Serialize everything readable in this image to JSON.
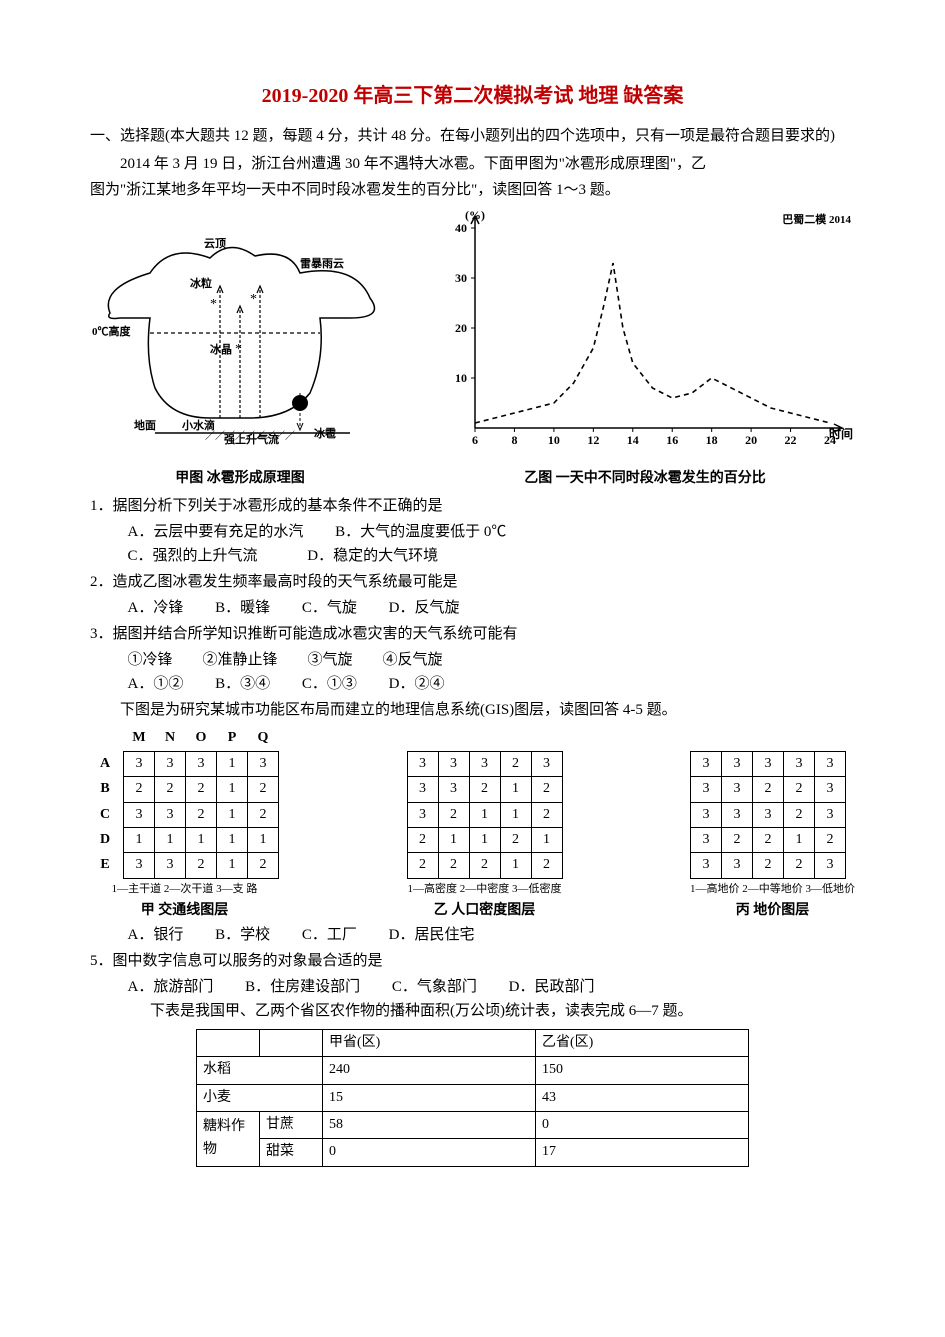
{
  "title": "2019-2020 年高三下第二次模拟考试 地理 缺答案",
  "section1_head": "一、选择题(本大题共 12 题，每题 4 分，共计 48 分。在每小题列出的四个选项中，只有一项是最符合题目要求的)",
  "intro1_line1": "2014 年 3 月 19 日，浙江台州遭遇 30 年不遇特大冰雹。下面甲图为\"冰雹形成原理图\"，乙",
  "intro1_line2": "图为\"浙江某地多年平均一天中不同时段冰雹发生的百分比\"，读图回答 1～3 题。",
  "fig_left": {
    "caption": "甲图   冰雹形成原理图",
    "labels": {
      "cloud_top": "云顶",
      "thunder_cloud": "雷暴雨云",
      "ice": "冰粒",
      "zero_line": "0℃高度",
      "ice_crystal": "冰晶",
      "ground_left": "地面",
      "droplet": "小水滴",
      "updraft": "强上升气流",
      "hail": "冰雹"
    }
  },
  "fig_right": {
    "caption": "乙图   一天中不同时段冰雹发生的百分比",
    "y_label": "(%)",
    "x_label": "时间",
    "watermark": "巴蜀二模 2014",
    "y_ticks": [
      "40",
      "30",
      "20",
      "10"
    ],
    "x_ticks": [
      "6",
      "8",
      "10",
      "12",
      "14",
      "16",
      "18",
      "20",
      "22",
      "24"
    ],
    "points": [
      [
        6,
        1
      ],
      [
        7,
        2
      ],
      [
        8,
        3
      ],
      [
        9,
        4
      ],
      [
        10,
        5
      ],
      [
        11,
        9
      ],
      [
        12,
        16
      ],
      [
        12.5,
        24
      ],
      [
        13,
        33
      ],
      [
        13.5,
        20
      ],
      [
        14,
        13
      ],
      [
        15,
        8
      ],
      [
        16,
        6
      ],
      [
        17,
        7
      ],
      [
        18,
        10
      ],
      [
        19,
        8
      ],
      [
        20,
        6
      ],
      [
        21,
        4
      ],
      [
        22,
        3
      ],
      [
        23,
        2
      ],
      [
        24,
        1
      ]
    ],
    "line_color": "#000000",
    "background_color": "#ffffff"
  },
  "q1": {
    "stem": "1．据图分析下列关于冰雹形成的基本条件不正确的是",
    "A": "A．云层中要有充足的水汽",
    "B": "B．大气的温度要低于 0℃",
    "C": "C．强烈的上升气流",
    "D": "D．稳定的大气环境"
  },
  "q2": {
    "stem": "2．造成乙图冰雹发生频率最高时段的天气系统最可能是",
    "A": "A．冷锋",
    "B": "B．暖锋",
    "C": "C．气旋",
    "D": "D．反气旋"
  },
  "q3": {
    "stem": "3．据图并结合所学知识推断可能造成冰雹灾害的天气系统可能有",
    "line2": "①冷锋        ②准静止锋        ③气旋        ④反气旋",
    "A": "A．①②",
    "B": "B．③④",
    "C": "C．①③",
    "D": "D．②④"
  },
  "gis_intro": "下图是为研究某城市功能区布局而建立的地理信息系统(GIS)图层，读图回答 4-5 题。",
  "gis_cols": [
    "M",
    "N",
    "O",
    "P",
    "Q"
  ],
  "gis_rows": [
    "A",
    "B",
    "C",
    "D",
    "E"
  ],
  "gis_jia": {
    "title": "甲  交通线图层",
    "legend": "1—主干道  2—次干道  3—支  路",
    "cells": [
      [
        3,
        3,
        3,
        1,
        3
      ],
      [
        2,
        2,
        2,
        1,
        2
      ],
      [
        3,
        3,
        2,
        1,
        2
      ],
      [
        1,
        1,
        1,
        1,
        1
      ],
      [
        3,
        3,
        2,
        1,
        2
      ]
    ]
  },
  "gis_yi": {
    "title": "乙  人口密度图层",
    "legend": "1—高密度  2—中密度  3—低密度",
    "cells": [
      [
        3,
        3,
        3,
        2,
        3
      ],
      [
        3,
        3,
        2,
        1,
        2
      ],
      [
        3,
        2,
        1,
        1,
        2
      ],
      [
        2,
        1,
        1,
        2,
        1
      ],
      [
        2,
        2,
        2,
        1,
        2
      ]
    ]
  },
  "gis_bing": {
    "title": "丙  地价图层",
    "legend": "1—高地价  2—中等地价  3—低地价",
    "cells": [
      [
        3,
        3,
        3,
        3,
        3
      ],
      [
        3,
        3,
        2,
        2,
        3
      ],
      [
        3,
        3,
        3,
        2,
        3
      ],
      [
        3,
        2,
        2,
        1,
        2
      ],
      [
        3,
        3,
        2,
        2,
        3
      ]
    ]
  },
  "q4_opts": {
    "A": "A．银行",
    "B": "B．学校",
    "C": "C．工厂",
    "D": "D．居民住宅"
  },
  "q5": {
    "stem": "5．图中数字信息可以服务的对象最合适的是",
    "A": "A．旅游部门",
    "B": "B．住房建设部门",
    "C": "C．气象部门",
    "D": "D．民政部门"
  },
  "table_intro": "下表是我国甲、乙两个省区农作物的播种面积(万公顷)统计表，读表完成 6—7 题。",
  "crop_table": {
    "headers": [
      "",
      "",
      "甲省(区)",
      "乙省(区)"
    ],
    "rows": [
      {
        "cat": "水稻",
        "sub": "",
        "jia": "240",
        "yi": "150"
      },
      {
        "cat": "小麦",
        "sub": "",
        "jia": "15",
        "yi": "43"
      },
      {
        "cat": "糖料作物",
        "sub": "甘蔗",
        "jia": "58",
        "yi": "0"
      },
      {
        "cat": "",
        "sub": "甜菜",
        "jia": "0",
        "yi": "17"
      }
    ]
  }
}
